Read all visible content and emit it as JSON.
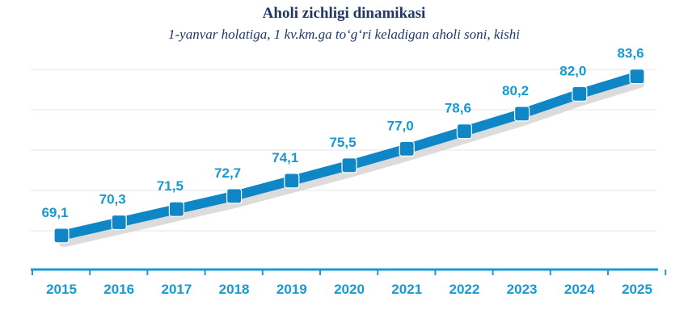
{
  "chart_data": {
    "type": "line",
    "title": "Aholi zichligi dinamikasi",
    "subtitle": "1-yanvar holatiga, 1 kv.km.ga to‘g‘ri keladigan aholi soni, kishi",
    "categories": [
      "2015",
      "2016",
      "2017",
      "2018",
      "2019",
      "2020",
      "2021",
      "2022",
      "2023",
      "2024",
      "2025"
    ],
    "values": [
      69.1,
      70.3,
      71.5,
      72.7,
      74.1,
      75.5,
      77.0,
      78.6,
      80.2,
      82.0,
      83.6
    ],
    "value_labels": [
      "69,1",
      "70,3",
      "71,5",
      "72,7",
      "74,1",
      "75,5",
      "77,0",
      "78,6",
      "80,2",
      "82,0",
      "83,6"
    ],
    "xlabel": "",
    "ylabel": "",
    "ylim": [
      66,
      86
    ],
    "grid": true,
    "legend": "none",
    "colors": {
      "line": "#0f86c6",
      "label": "#1899d0",
      "axis": "#1b9ad6",
      "tick_label": "#1899d0",
      "grid": "#e6e6e6",
      "shadow": "#d0d0d0",
      "title": "#1f3864"
    }
  }
}
